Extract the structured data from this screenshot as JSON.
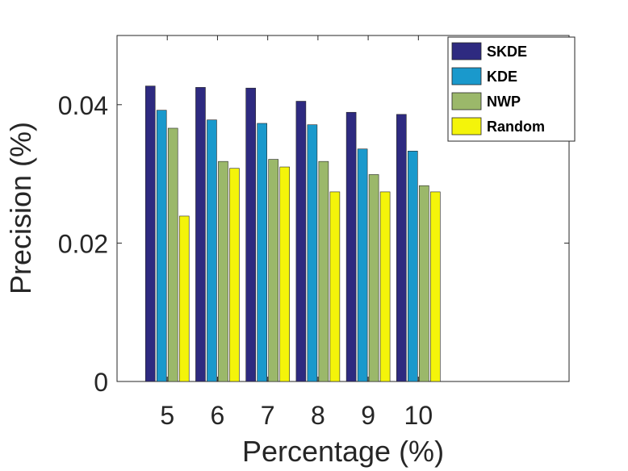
{
  "chart_data": {
    "type": "bar",
    "title": "",
    "xlabel": "Percentage (%)",
    "ylabel": "Precision (%)",
    "categories": [
      "5",
      "6",
      "7",
      "8",
      "9",
      "10"
    ],
    "x_range": [
      4,
      13
    ],
    "ylim": [
      0,
      0.05
    ],
    "yticks": [
      0,
      0.02,
      0.04
    ],
    "ytick_labels": [
      "0",
      "0.02",
      "0.04"
    ],
    "grid": false,
    "legend_position": "top-right",
    "series": [
      {
        "name": "SKDE",
        "color": "#2e2a80",
        "values": [
          0.0427,
          0.0425,
          0.0424,
          0.0405,
          0.0389,
          0.0386
        ]
      },
      {
        "name": "KDE",
        "color": "#1a99cc",
        "values": [
          0.0392,
          0.0378,
          0.0373,
          0.0371,
          0.0336,
          0.0333
        ]
      },
      {
        "name": "NWP",
        "color": "#9bb86a",
        "values": [
          0.0366,
          0.0318,
          0.0321,
          0.0318,
          0.0299,
          0.0283
        ]
      },
      {
        "name": "Random",
        "color": "#f4f40a",
        "values": [
          0.0239,
          0.0308,
          0.031,
          0.0274,
          0.0274,
          0.0274
        ]
      }
    ]
  }
}
